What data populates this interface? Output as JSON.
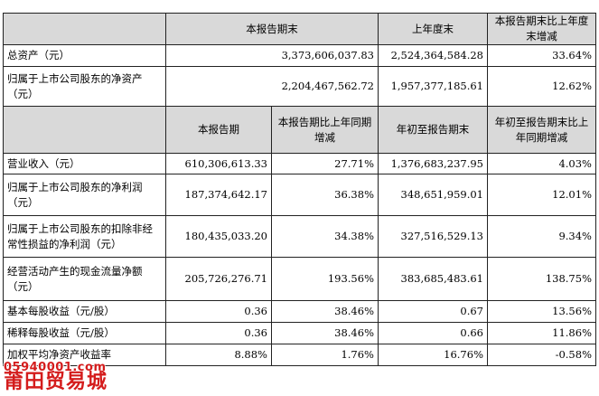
{
  "header1": {
    "col_current": "本报告期末",
    "col_prior": "上年度末",
    "col_change": "本报告期末比上年度末增减"
  },
  "top_rows": [
    {
      "label": "总资产（元）",
      "current": "3,373,606,037.83",
      "prior": "2,524,364,584.28",
      "change": "33.64%"
    },
    {
      "label": "归属于上市公司股东的净资产（元）",
      "current": "2,204,467,562.72",
      "prior": "1,957,377,185.61",
      "change": "12.62%"
    }
  ],
  "header2": {
    "col_period": "本报告期",
    "col_period_change": "本报告期比上年同期增减",
    "col_ytd": "年初至报告期末",
    "col_ytd_change": "年初至报告期末比上年同期增减"
  },
  "bottom_rows": [
    {
      "label": "营业收入（元）",
      "period": "610,306,613.33",
      "period_change": "27.71%",
      "ytd": "1,376,683,237.95",
      "ytd_change": "4.03%"
    },
    {
      "label": "归属于上市公司股东的净利润（元）",
      "period": "187,374,642.17",
      "period_change": "36.38%",
      "ytd": "348,651,959.01",
      "ytd_change": "12.01%"
    },
    {
      "label": "归属于上市公司股东的扣除非经常性损益的净利润（元）",
      "period": "180,435,033.20",
      "period_change": "34.38%",
      "ytd": "327,516,529.13",
      "ytd_change": "9.34%"
    },
    {
      "label": "经营活动产生的现金流量净额（元）",
      "period": "205,726,276.71",
      "period_change": "193.56%",
      "ytd": "383,685,483.61",
      "ytd_change": "138.75%"
    },
    {
      "label": "基本每股收益（元/股）",
      "period": "0.36",
      "period_change": "38.46%",
      "ytd": "0.67",
      "ytd_change": "13.56%"
    },
    {
      "label": "稀释每股收益（元/股）",
      "period": "0.36",
      "period_change": "38.46%",
      "ytd": "0.66",
      "ytd_change": "11.86%"
    },
    {
      "label": "加权平均净资产收益率",
      "period": "8.88%",
      "period_change": "1.76%",
      "ytd": "16.76%",
      "ytd_change": "-0.58%"
    }
  ],
  "watermark": {
    "line1": "05940001.com",
    "line2": "莆田贸易城"
  }
}
